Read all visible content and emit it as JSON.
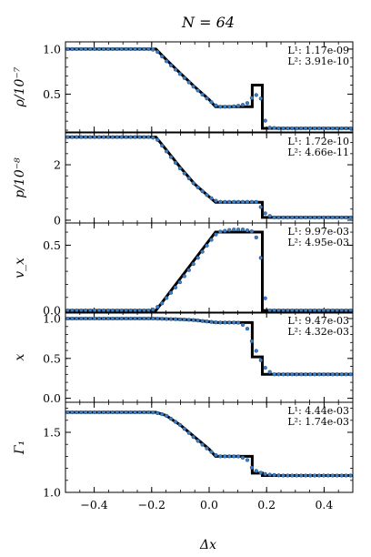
{
  "chart_data": {
    "type": "line",
    "title": "N = 64",
    "xlabel": "Δx",
    "xlim": [
      -0.5,
      0.5
    ],
    "xticks": [
      -0.4,
      -0.2,
      0.0,
      0.2,
      0.4
    ],
    "xtick_labels": [
      "−0.4",
      "−0.2",
      "0.0",
      "0.2",
      "0.4"
    ],
    "colors": {
      "exact": "#000000",
      "sim": "#3f7fc0",
      "sim_edge": "#1f4f8a"
    },
    "panels": [
      {
        "ylabel": "ρ/10⁻⁷",
        "ylim": [
          0.08,
          1.08
        ],
        "yticks": [
          0.5,
          1.0
        ],
        "ytick_labels": [
          "0.5",
          "1.0"
        ],
        "errors": [
          "L¹: 1.17e-09",
          "L²: 3.91e-10"
        ],
        "exact": {
          "x": [
            -0.5,
            -0.185,
            -0.15,
            -0.1,
            -0.05,
            0.0,
            0.022,
            0.15,
            0.15,
            0.185,
            0.185,
            0.5
          ],
          "y": [
            1.0,
            1.0,
            0.885,
            0.73,
            0.58,
            0.44,
            0.36,
            0.36,
            0.6,
            0.6,
            0.12,
            0.12
          ]
        },
        "sim": {
          "x": [
            -0.5,
            -0.2,
            -0.18,
            -0.15,
            -0.1,
            -0.05,
            0.0,
            0.03,
            0.07,
            0.1,
            0.13,
            0.16,
            0.18,
            0.2,
            0.25,
            0.5
          ],
          "y": [
            1.0,
            1.0,
            0.97,
            0.87,
            0.72,
            0.57,
            0.43,
            0.36,
            0.36,
            0.37,
            0.39,
            0.5,
            0.45,
            0.13,
            0.12,
            0.12
          ]
        }
      },
      {
        "ylabel": "p/10⁻⁸",
        "ylim": [
          -0.1,
          3.15
        ],
        "yticks": [
          0,
          2
        ],
        "ytick_labels": [
          "0",
          "2"
        ],
        "errors": [
          "L¹: 1.72e-10",
          "L²: 4.66e-11"
        ],
        "exact": {
          "x": [
            -0.5,
            -0.185,
            -0.15,
            -0.1,
            -0.05,
            0.0,
            0.022,
            0.185,
            0.185,
            0.5
          ],
          "y": [
            3.0,
            3.0,
            2.55,
            1.9,
            1.3,
            0.85,
            0.65,
            0.65,
            0.1,
            0.1
          ]
        },
        "sim": {
          "x": [
            -0.5,
            -0.2,
            -0.18,
            -0.15,
            -0.1,
            -0.05,
            0.0,
            0.03,
            0.1,
            0.17,
            0.19,
            0.22,
            0.5
          ],
          "y": [
            3.0,
            3.0,
            2.9,
            2.5,
            1.85,
            1.28,
            0.84,
            0.66,
            0.66,
            0.66,
            0.28,
            0.1,
            0.1
          ]
        }
      },
      {
        "ylabel": "v_x",
        "ylim": [
          -0.02,
          0.67
        ],
        "yticks": [
          0.0,
          0.5
        ],
        "ytick_labels": [
          "0.0",
          "0.5"
        ],
        "errors": [
          "L¹: 9.97e-03",
          "L²: 4.95e-03"
        ],
        "exact": {
          "x": [
            -0.5,
            -0.185,
            0.022,
            0.185,
            0.185,
            0.5
          ],
          "y": [
            0.0,
            0.0,
            0.6,
            0.6,
            0.0,
            0.0
          ]
        },
        "sim": {
          "x": [
            -0.5,
            -0.2,
            -0.17,
            -0.1,
            -0.05,
            0.0,
            0.03,
            0.08,
            0.12,
            0.16,
            0.18,
            0.2,
            0.5
          ],
          "y": [
            0.0,
            0.0,
            0.04,
            0.22,
            0.37,
            0.52,
            0.6,
            0.62,
            0.62,
            0.6,
            0.4,
            0.0,
            0.0
          ]
        }
      },
      {
        "ylabel": "x",
        "ylim": [
          -0.05,
          1.08
        ],
        "yticks": [
          0.0,
          0.5,
          1.0
        ],
        "ytick_labels": [
          "0.0",
          "0.5",
          "1.0"
        ],
        "errors": [
          "L¹: 9.47e-03",
          "L²: 4.32e-03"
        ],
        "exact": {
          "x": [
            -0.5,
            -0.185,
            -0.1,
            -0.05,
            0.0,
            0.022,
            0.15,
            0.15,
            0.185,
            0.185,
            0.5
          ],
          "y": [
            1.0,
            1.0,
            0.99,
            0.98,
            0.96,
            0.95,
            0.95,
            0.52,
            0.52,
            0.3,
            0.3
          ]
        },
        "sim": {
          "x": [
            -0.5,
            -0.2,
            -0.1,
            -0.05,
            0.0,
            0.03,
            0.1,
            0.13,
            0.15,
            0.17,
            0.19,
            0.22,
            0.5
          ],
          "y": [
            1.0,
            1.0,
            0.99,
            0.98,
            0.96,
            0.95,
            0.95,
            0.9,
            0.7,
            0.55,
            0.4,
            0.3,
            0.3
          ]
        }
      },
      {
        "ylabel": "Γ₁",
        "ylim": [
          1.0,
          1.75
        ],
        "yticks": [
          1.0,
          1.5
        ],
        "ytick_labels": [
          "1.0",
          "1.5"
        ],
        "errors": [
          "L¹: 4.44e-03",
          "L²: 1.74e-03"
        ],
        "exact": {
          "x": [
            -0.5,
            -0.185,
            -0.15,
            -0.1,
            -0.05,
            0.0,
            0.022,
            0.15,
            0.15,
            0.185,
            0.185,
            0.5
          ],
          "y": [
            1.667,
            1.667,
            1.64,
            1.56,
            1.46,
            1.36,
            1.3,
            1.3,
            1.16,
            1.16,
            1.14,
            1.14
          ]
        },
        "sim": {
          "x": [
            -0.5,
            -0.2,
            -0.17,
            -0.15,
            -0.1,
            -0.05,
            0.0,
            0.03,
            0.1,
            0.13,
            0.15,
            0.17,
            0.2,
            0.25,
            0.5
          ],
          "y": [
            1.667,
            1.667,
            1.655,
            1.64,
            1.56,
            1.45,
            1.35,
            1.3,
            1.3,
            1.28,
            1.2,
            1.17,
            1.15,
            1.14,
            1.14
          ]
        }
      }
    ]
  }
}
